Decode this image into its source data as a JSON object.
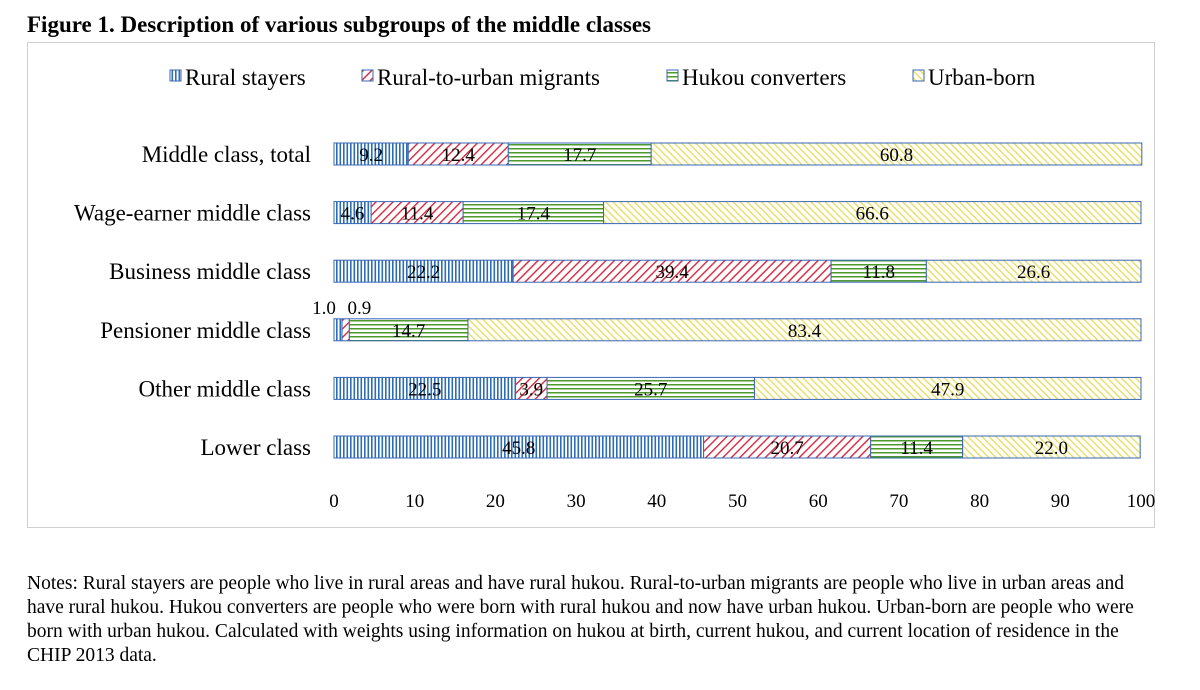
{
  "figure_title": "Figure 1. Description of various subgroups of the middle classes",
  "notes": "Notes: Rural stayers are people who live in rural areas and have rural hukou. Rural-to-urban migrants are people who live in urban areas and have rural hukou. Hukou converters are people who were born with rural hukou and now have urban hukou. Urban-born are people who were born with urban hukou. Calculated with weights using information on hukou at birth, current hukou, and current location of residence in the CHIP 2013 data.",
  "chart_data": {
    "type": "bar",
    "orientation": "horizontal",
    "stacked": true,
    "title": "Figure 1. Description of various subgroups of the middle classes",
    "xlabel": "",
    "ylabel": "",
    "xlim": [
      0,
      100
    ],
    "xticks": [
      0,
      10,
      20,
      30,
      40,
      50,
      60,
      70,
      80,
      90,
      100
    ],
    "legend_position": "top",
    "grid": false,
    "categories": [
      "Middle class, total",
      "Wage-earner middle class",
      "Business middle class",
      "Pensioner middle class",
      "Other middle class",
      "Lower class"
    ],
    "series": [
      {
        "name": "Rural stayers",
        "values": [
          9.2,
          4.6,
          22.2,
          1.0,
          22.5,
          45.8
        ],
        "labels": [
          "9.2",
          "4.6",
          "22.2",
          "1.0",
          "22.5",
          "45.8"
        ],
        "color": "#2e6db4",
        "pattern": "vertical-lines"
      },
      {
        "name": "Rural-to-urban migrants",
        "values": [
          12.4,
          11.4,
          39.4,
          0.9,
          3.9,
          20.7
        ],
        "labels": [
          "12.4",
          "11.4",
          "39.4",
          "0.9",
          "3.9",
          "20.7"
        ],
        "color": "#d8263b",
        "pattern": "diagonal-lines"
      },
      {
        "name": "Hukou converters",
        "values": [
          17.7,
          17.4,
          11.8,
          14.7,
          25.7,
          11.4
        ],
        "labels": [
          "17.7",
          "17.4",
          "11.8",
          "14.7",
          "25.7",
          "11.4"
        ],
        "color": "#4e9a2c",
        "pattern": "horizontal-lines"
      },
      {
        "name": "Urban-born",
        "values": [
          60.8,
          66.6,
          26.6,
          83.4,
          47.9,
          22.0
        ],
        "labels": [
          "60.8",
          "66.6",
          "26.6",
          "83.4",
          "47.9",
          "22.0"
        ],
        "color": "#e3d63a",
        "pattern": "diagonal-lines-light"
      }
    ],
    "outside_labels": {
      "category_index": 3,
      "series_indices": [
        0,
        1
      ]
    }
  }
}
